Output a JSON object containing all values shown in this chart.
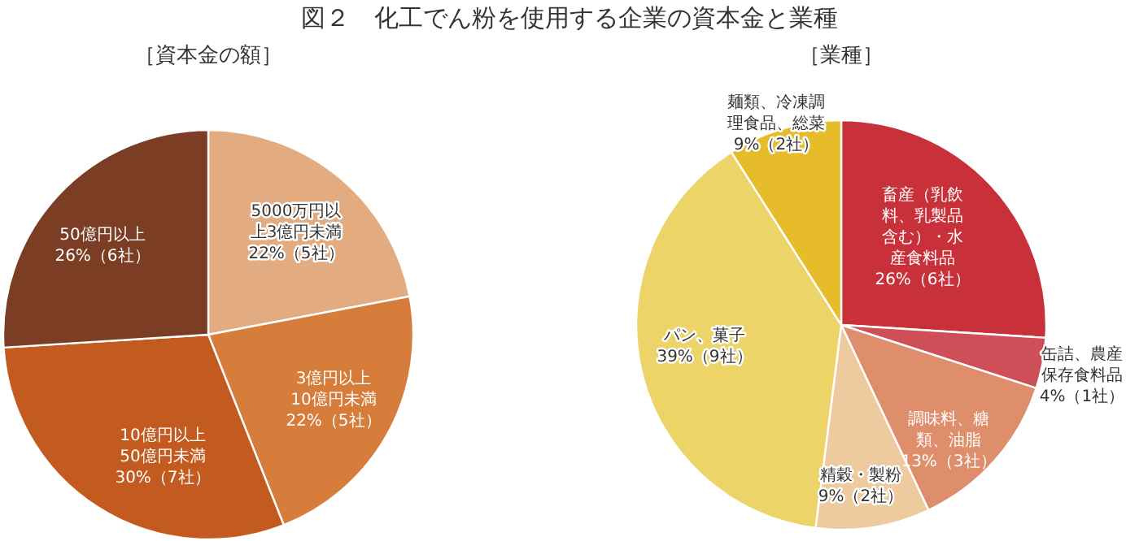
{
  "chart_data": [
    {
      "type": "pie",
      "title": "図２　化工でん粉を使用する企業の資本金と業種",
      "subtitle": "［資本金の額］",
      "categories": [
        "5000万円以上3億円未満",
        "3億円以上10億円未満",
        "10億円以上50億円未満",
        "50億円以上"
      ],
      "values": [
        22,
        22,
        30,
        26
      ],
      "value_labels": [
        "22%（5社）",
        "22%（5社）",
        "30%（7社）",
        "26%（6社）"
      ],
      "colors": [
        "#e2ab80",
        "#d67d3c",
        "#c35a1f",
        "#7b3d24"
      ]
    },
    {
      "type": "pie",
      "subtitle": "［業種］",
      "categories": [
        "畜産（乳飲料、乳製品含む）・水産食料品",
        "缶詰、農産保存食料品",
        "調味料、糖類、油脂",
        "精穀・製粉",
        "パン、菓子",
        "麺類、冷凍調理食品、総菜"
      ],
      "values": [
        26,
        4,
        13,
        9,
        39,
        9
      ],
      "value_labels": [
        "26%（6社）",
        "4%（1社）",
        "13%（3社）",
        "9%（2社）",
        "39%（9社）",
        "9%（2社）"
      ],
      "colors": [
        "#c8303a",
        "#cf4f58",
        "#de8e6a",
        "#eecb9e",
        "#ecd468",
        "#e6bc2a"
      ]
    }
  ]
}
